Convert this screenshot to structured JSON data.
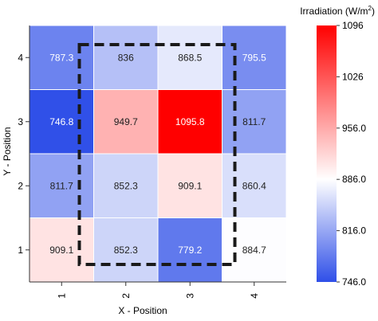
{
  "chart_data": {
    "type": "heatmap",
    "xlabel": "X - Position",
    "ylabel": "Y - Position",
    "x_categories": [
      "1",
      "2",
      "3",
      "4"
    ],
    "y_categories": [
      "1",
      "2",
      "3",
      "4"
    ],
    "values": [
      {
        "x": "1",
        "y": "4",
        "value": 787.3
      },
      {
        "x": "2",
        "y": "4",
        "value": 836
      },
      {
        "x": "3",
        "y": "4",
        "value": 868.5
      },
      {
        "x": "4",
        "y": "4",
        "value": 795.5
      },
      {
        "x": "1",
        "y": "3",
        "value": 746.8
      },
      {
        "x": "2",
        "y": "3",
        "value": 949.7
      },
      {
        "x": "3",
        "y": "3",
        "value": 1095.8
      },
      {
        "x": "4",
        "y": "3",
        "value": 811.7
      },
      {
        "x": "1",
        "y": "2",
        "value": 811.7
      },
      {
        "x": "2",
        "y": "2",
        "value": 852.3
      },
      {
        "x": "3",
        "y": "2",
        "value": 909.1
      },
      {
        "x": "4",
        "y": "2",
        "value": 860.4
      },
      {
        "x": "1",
        "y": "1",
        "value": 909.1
      },
      {
        "x": "2",
        "y": "1",
        "value": 852.3
      },
      {
        "x": "3",
        "y": "1",
        "value": 779.2
      },
      {
        "x": "4",
        "y": "1",
        "value": 884.7
      }
    ],
    "value_labels": {
      "1,4": "787.3",
      "2,4": "836",
      "3,4": "868.5",
      "4,4": "795.5",
      "1,3": "746.8",
      "2,3": "949.7",
      "3,3": "1095.8",
      "4,3": "811.7",
      "1,2": "811.7",
      "2,2": "852.3",
      "3,2": "909.1",
      "4,2": "860.4",
      "1,1": "909.1",
      "2,1": "852.3",
      "3,1": "779.2",
      "4,1": "884.7"
    },
    "colorbar": {
      "title": "Irradiation (W/m",
      "title_superscript": "2",
      "title_close": ")",
      "min": 746.0,
      "max": 1096,
      "ticks": [
        {
          "value": 1096,
          "label": "1096"
        },
        {
          "value": 1026,
          "label": "1026"
        },
        {
          "value": 956.0,
          "label": "956.0"
        },
        {
          "value": 886.0,
          "label": "886.0"
        },
        {
          "value": 816.0,
          "label": "816.0"
        },
        {
          "value": 746.0,
          "label": "746.0"
        }
      ],
      "color_low": "#2f4fe8",
      "color_mid": "#ffffff",
      "color_high": "#ff0000"
    },
    "highlight_region": {
      "x_from": "2",
      "x_to": "3",
      "y_from": "1",
      "y_to": "4",
      "style": "dashed"
    },
    "grid_line_color": "#ffffff",
    "text_color_on_light": "#222222",
    "text_color_on_dark": "#ffffff"
  }
}
